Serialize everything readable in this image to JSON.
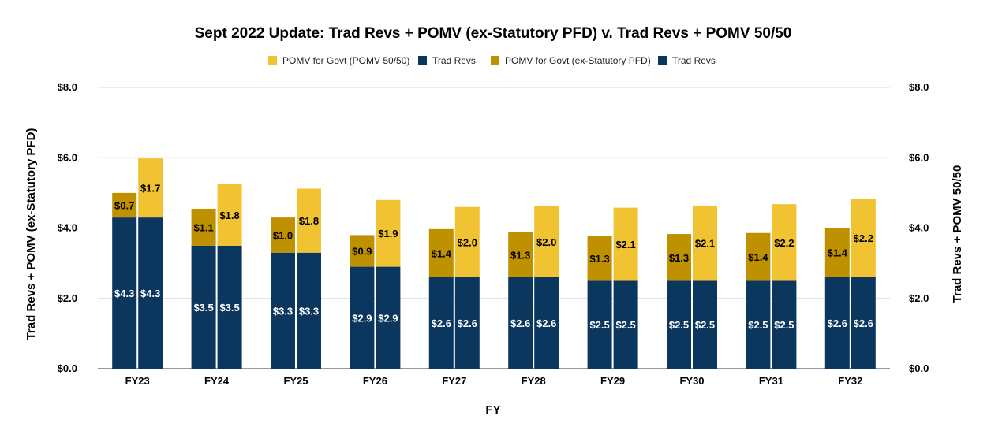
{
  "chart_data": {
    "type": "bar",
    "stacked": true,
    "title": "Sept 2022 Update: Trad Revs + POMV (ex-Statutory PFD) v. Trad Revs + POMV 50/50",
    "xlabel": "FY",
    "ylabel_left": "Trad Revs + POMV (ex-Statutory PFD)",
    "ylabel_right": "Trad Revs + POMV 50/50",
    "ylim": [
      0,
      8
    ],
    "yticks": [
      "$0.0",
      "$2.0",
      "$4.0",
      "$6.0",
      "$8.0"
    ],
    "grid": true,
    "legend_position": "top",
    "categories": [
      "FY23",
      "FY24",
      "FY25",
      "FY26",
      "FY27",
      "FY28",
      "FY29",
      "FY30",
      "FY31",
      "FY32"
    ],
    "legend": [
      {
        "name": "POMV for Govt (POMV 50/50)",
        "color": "#f1c232"
      },
      {
        "name": "Trad Revs",
        "color": "#0b375f"
      },
      {
        "name": "POMV for Govt (ex-Statutory PFD)",
        "color": "#bf9000"
      },
      {
        "name": "Trad Revs",
        "color": "#0b375f"
      }
    ],
    "stacks": [
      {
        "axis": "left",
        "scenario": "ex-Statutory PFD",
        "series": [
          {
            "name": "Trad Revs",
            "color": "#0b375f",
            "label_color": "#ffffff",
            "values": [
              4.3,
              3.5,
              3.3,
              2.9,
              2.6,
              2.6,
              2.5,
              2.5,
              2.5,
              2.6
            ],
            "labels": [
              "$4.3",
              "$3.5",
              "$3.3",
              "$2.9",
              "$2.6",
              "$2.6",
              "$2.5",
              "$2.5",
              "$2.5",
              "$2.6"
            ]
          },
          {
            "name": "POMV for Govt (ex-Statutory PFD)",
            "color": "#bf9000",
            "label_color": "#000000",
            "values": [
              0.7,
              1.05,
              1.0,
              0.9,
              1.37,
              1.28,
              1.28,
              1.33,
              1.36,
              1.4
            ],
            "labels": [
              "$0.7",
              "$1.1",
              "$1.0",
              "$0.9",
              "$1.4",
              "$1.3",
              "$1.3",
              "$1.3",
              "$1.4",
              "$1.4"
            ]
          }
        ]
      },
      {
        "axis": "right",
        "scenario": "POMV 50/50",
        "series": [
          {
            "name": "Trad Revs",
            "color": "#0b375f",
            "label_color": "#ffffff",
            "values": [
              4.3,
              3.5,
              3.3,
              2.9,
              2.6,
              2.6,
              2.5,
              2.5,
              2.5,
              2.6
            ],
            "labels": [
              "$4.3",
              "$3.5",
              "$3.3",
              "$2.9",
              "$2.6",
              "$2.6",
              "$2.5",
              "$2.5",
              "$2.5",
              "$2.6"
            ]
          },
          {
            "name": "POMV for Govt (POMV 50/50)",
            "color": "#f1c232",
            "label_color": "#000000",
            "values": [
              1.68,
              1.75,
              1.82,
              1.9,
              2.0,
              2.02,
              2.08,
              2.14,
              2.18,
              2.23
            ],
            "labels": [
              "$1.7",
              "$1.8",
              "$1.8",
              "$1.9",
              "$2.0",
              "$2.0",
              "$2.1",
              "$2.1",
              "$2.2",
              "$2.2"
            ]
          }
        ]
      }
    ]
  }
}
